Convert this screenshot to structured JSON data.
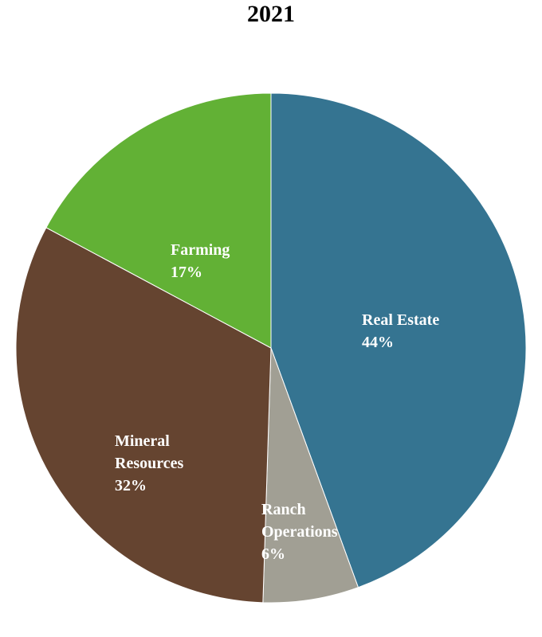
{
  "chart_data": {
    "type": "pie",
    "title": "2021",
    "slices": [
      {
        "name": "Real Estate",
        "label_lines": [
          "Real Estate"
        ],
        "percent_label": "44%",
        "value": 44,
        "color": "#357491"
      },
      {
        "name": "Ranch Operations",
        "label_lines": [
          "Ranch",
          "Operations"
        ],
        "percent_label": "6%",
        "value": 6,
        "color": "#A19F94"
      },
      {
        "name": "Mineral Resources",
        "label_lines": [
          "Mineral",
          "Resources"
        ],
        "percent_label": "32%",
        "value": 32,
        "color": "#654430"
      },
      {
        "name": "Farming",
        "label_lines": [
          "Farming"
        ],
        "percent_label": "17%",
        "value": 17,
        "color": "#62B135"
      }
    ],
    "start_angle_deg": 0,
    "direction": "clockwise",
    "legend": "none"
  }
}
